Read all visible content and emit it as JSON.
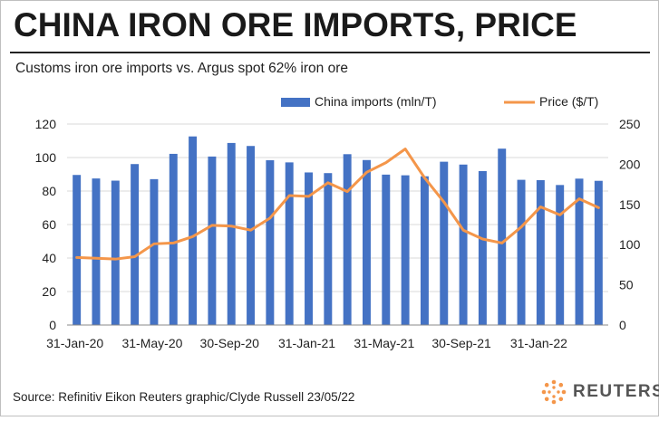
{
  "header": {
    "title": "CHINA IRON ORE IMPORTS, PRICE",
    "subtitle": "Customs iron ore imports vs. Argus spot 62% iron ore"
  },
  "footer": {
    "source": "Source: Refinitiv Eikon    Reuters graphic/Clyde Russell 23/05/22",
    "logo_text": "REUTERS"
  },
  "colors": {
    "bar": "#4472c4",
    "line": "#f4964a",
    "gridline": "#d9d9d9",
    "axis_text": "#222222"
  },
  "chart_data": {
    "type": "bar",
    "title": "CHINA IRON ORE IMPORTS, PRICE",
    "subtitle": "Customs iron ore imports vs. Argus spot 62% iron ore",
    "categories": [
      "31-Jan-20",
      "29-Feb-20",
      "31-Mar-20",
      "30-Apr-20",
      "31-May-20",
      "30-Jun-20",
      "31-Jul-20",
      "31-Aug-20",
      "30-Sep-20",
      "31-Oct-20",
      "30-Nov-20",
      "31-Dec-20",
      "31-Jan-21",
      "28-Feb-21",
      "31-Mar-21",
      "30-Apr-21",
      "31-May-21",
      "30-Jun-21",
      "31-Jul-21",
      "31-Aug-21",
      "30-Sep-21",
      "31-Oct-21",
      "30-Nov-21",
      "31-Dec-21",
      "31-Jan-22",
      "28-Feb-22",
      "31-Mar-22",
      "30-Apr-22"
    ],
    "x_tick_labels": [
      "31-Jan-20",
      "31-May-20",
      "30-Sep-20",
      "31-Jan-21",
      "31-May-21",
      "30-Sep-21",
      "31-Jan-22"
    ],
    "x_tick_every": 4,
    "series": [
      {
        "name": "China imports (mln/T)",
        "type": "bar",
        "axis": "left",
        "values": [
          89.6,
          87.5,
          86.2,
          96.1,
          87.1,
          102.2,
          112.6,
          100.6,
          108.7,
          106.9,
          98.4,
          97.1,
          91.1,
          90.7,
          102.0,
          98.5,
          89.8,
          89.4,
          88.8,
          97.5,
          95.8,
          91.9,
          105.3,
          86.7,
          86.5,
          83.6,
          87.4,
          86.1
        ]
      },
      {
        "name": "Price ($/T)",
        "type": "line",
        "axis": "right",
        "values": [
          84,
          83,
          82,
          85,
          101,
          102,
          110,
          124,
          123,
          118,
          133,
          161,
          160,
          177,
          166,
          190,
          202,
          219,
          183,
          153,
          118,
          107,
          102,
          122,
          147,
          137,
          157,
          146
        ]
      }
    ],
    "y_left": {
      "min": 0,
      "max": 120,
      "ticks": [
        0,
        20,
        40,
        60,
        80,
        100,
        120
      ]
    },
    "y_right": {
      "min": 0,
      "max": 250,
      "ticks": [
        0,
        50,
        100,
        150,
        200,
        250
      ]
    },
    "grid": true,
    "legend_position": "top-center"
  }
}
